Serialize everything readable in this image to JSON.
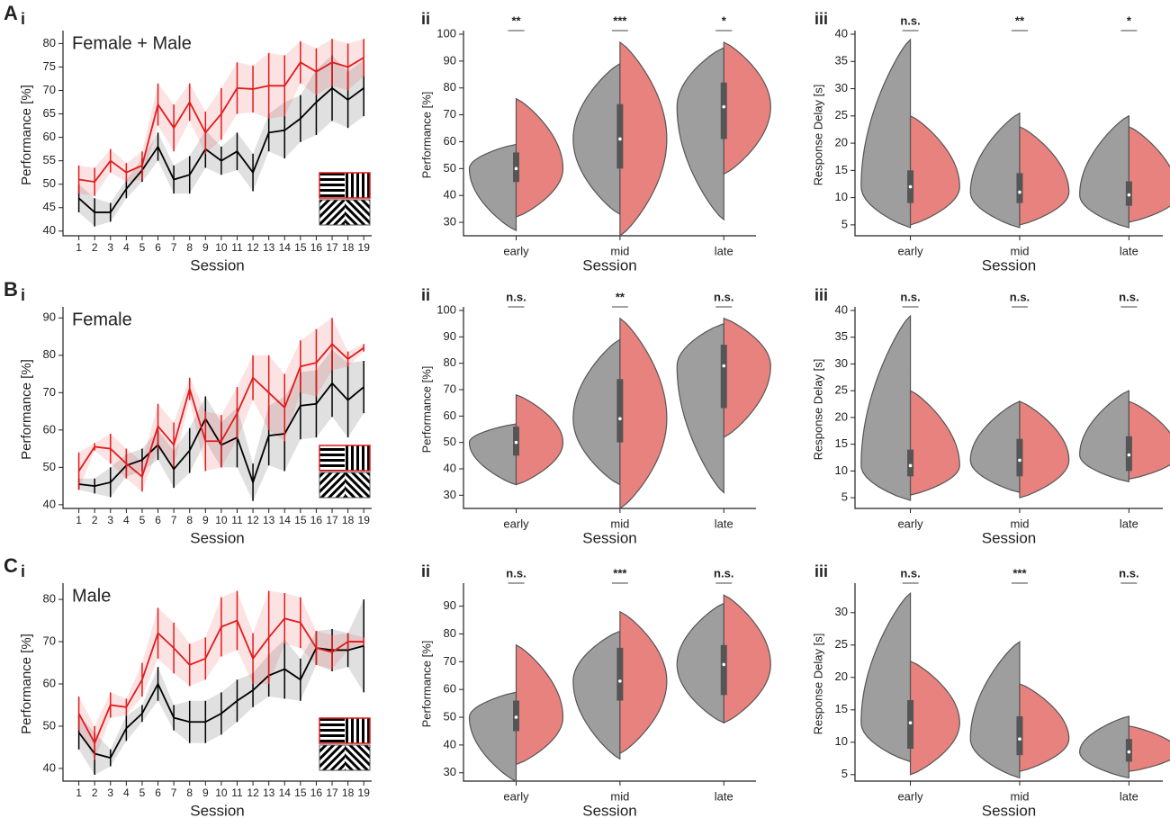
{
  "row_labels": [
    "A",
    "B",
    "C"
  ],
  "chart_data": [
    {
      "type": "line",
      "panel": "i",
      "title": "Female + Male",
      "xlabel": "Session",
      "ylabel": "Performance [%]",
      "x": [
        1,
        2,
        3,
        4,
        5,
        6,
        7,
        8,
        9,
        10,
        11,
        12,
        13,
        14,
        15,
        16,
        17,
        18,
        19
      ],
      "xlim": [
        0,
        19.5
      ],
      "xticks": [
        1,
        2,
        3,
        4,
        5,
        6,
        7,
        8,
        9,
        10,
        11,
        12,
        13,
        14,
        15,
        16,
        17,
        18,
        19
      ],
      "ylim": [
        39,
        82
      ],
      "yticks": [
        40,
        45,
        50,
        55,
        60,
        65,
        70,
        75,
        80
      ],
      "series": [
        {
          "color": "#e31a1c",
          "values": [
            51,
            50.5,
            55,
            52.5,
            54,
            67,
            62,
            67.5,
            61,
            65,
            70.5,
            70.3,
            71,
            71,
            76,
            74,
            76,
            75,
            77
          ],
          "errors": [
            3,
            3,
            2.5,
            2,
            3,
            4.5,
            5,
            4,
            4.5,
            5.5,
            5.5,
            5,
            7,
            6.5,
            4.5,
            5,
            5,
            5,
            4
          ]
        },
        {
          "color": "#000000",
          "values": [
            47,
            44,
            44,
            49,
            53,
            58,
            51,
            52,
            57.5,
            55,
            57,
            52.5,
            61,
            61.5,
            64,
            67.5,
            70.5,
            68,
            70.5
          ],
          "errors": [
            3,
            3,
            2,
            2,
            2.5,
            3,
            3,
            4,
            4,
            3,
            4,
            4,
            4,
            6,
            5,
            7,
            7,
            6,
            6
          ]
        }
      ]
    },
    {
      "type": "violin",
      "panel": "ii",
      "xlabel": "Session",
      "ylabel": "Performance [%]",
      "categories": [
        "early",
        "mid",
        "late"
      ],
      "ylim": [
        25,
        100
      ],
      "yticks": [
        30,
        40,
        50,
        60,
        70,
        80,
        90,
        100
      ],
      "series": [
        {
          "color": "#9e9e9e",
          "min": [
            27,
            33,
            31
          ],
          "max": [
            59,
            89,
            95
          ]
        },
        {
          "color": "#e8827f",
          "min": [
            32,
            25,
            48
          ],
          "max": [
            76,
            97,
            97
          ]
        }
      ],
      "box": {
        "q1": [
          45,
          50,
          61
        ],
        "median": [
          50,
          61,
          73
        ],
        "q3": [
          56,
          74,
          82
        ]
      },
      "annotations": [
        "**",
        "***",
        "*"
      ]
    },
    {
      "type": "violin",
      "panel": "iii",
      "xlabel": "Session",
      "ylabel": "Response Delay [s]",
      "categories": [
        "early",
        "mid",
        "late"
      ],
      "ylim": [
        3,
        40
      ],
      "yticks": [
        5,
        10,
        15,
        20,
        25,
        30,
        35,
        40
      ],
      "series": [
        {
          "color": "#9e9e9e",
          "min": [
            4.5,
            4.5,
            4.5
          ],
          "max": [
            39,
            25.5,
            25
          ]
        },
        {
          "color": "#e8827f",
          "min": [
            5,
            5,
            5.5
          ],
          "max": [
            25,
            23,
            23
          ]
        }
      ],
      "box": {
        "q1": [
          9,
          9,
          8.5
        ],
        "median": [
          12,
          11,
          10.5
        ],
        "q3": [
          15,
          14.5,
          13
        ]
      },
      "annotations": [
        "n.s.",
        "**",
        "*"
      ]
    },
    {
      "type": "line",
      "panel": "i",
      "title": "Female",
      "xlabel": "Session",
      "ylabel": "Performance [%]",
      "x": [
        1,
        2,
        3,
        4,
        5,
        6,
        7,
        8,
        9,
        10,
        11,
        12,
        13,
        14,
        15,
        16,
        17,
        18,
        19
      ],
      "xlim": [
        0,
        19.5
      ],
      "xticks": [
        1,
        2,
        3,
        4,
        5,
        6,
        7,
        8,
        9,
        10,
        11,
        12,
        13,
        14,
        15,
        16,
        17,
        18,
        19
      ],
      "ylim": [
        39,
        92
      ],
      "yticks": [
        40,
        50,
        60,
        70,
        80,
        90
      ],
      "series": [
        {
          "color": "#e31a1c",
          "values": [
            49,
            55.5,
            55,
            51,
            47.5,
            61,
            56,
            71,
            57,
            57,
            64.5,
            74,
            70,
            66,
            77,
            78,
            83,
            79,
            82
          ],
          "errors": [
            5,
            1,
            4,
            4,
            4,
            6,
            6,
            3,
            8,
            7,
            7,
            6,
            10,
            9,
            7,
            9,
            7,
            2,
            1
          ]
        },
        {
          "color": "#000000",
          "values": [
            45.5,
            45,
            46,
            50.5,
            52,
            56,
            49.5,
            54.5,
            63,
            56,
            58,
            46,
            58.5,
            59,
            66.5,
            67,
            72.5,
            68,
            71.5
          ],
          "errors": [
            1.5,
            2,
            4,
            3,
            3,
            4,
            5,
            6,
            6,
            6,
            8,
            5,
            8,
            10,
            9,
            9,
            9,
            10,
            7
          ]
        }
      ]
    },
    {
      "type": "violin",
      "panel": "ii",
      "xlabel": "Session",
      "ylabel": "Performance [%]",
      "categories": [
        "early",
        "mid",
        "late"
      ],
      "ylim": [
        25,
        100
      ],
      "yticks": [
        30,
        40,
        50,
        60,
        70,
        80,
        90,
        100
      ],
      "series": [
        {
          "color": "#9e9e9e",
          "min": [
            34,
            34,
            31
          ],
          "max": [
            57,
            89,
            95
          ]
        },
        {
          "color": "#e8827f",
          "min": [
            34,
            25,
            52
          ],
          "max": [
            68,
            97,
            97
          ]
        }
      ],
      "box": {
        "q1": [
          45,
          50,
          63
        ],
        "median": [
          50,
          59,
          79
        ],
        "q3": [
          56,
          74,
          87
        ]
      },
      "annotations": [
        "n.s.",
        "**",
        "n.s."
      ]
    },
    {
      "type": "violin",
      "panel": "iii",
      "xlabel": "Session",
      "ylabel": "Response Delay [s]",
      "categories": [
        "early",
        "mid",
        "late"
      ],
      "ylim": [
        3,
        40
      ],
      "yticks": [
        5,
        10,
        15,
        20,
        25,
        30,
        35,
        40
      ],
      "series": [
        {
          "color": "#9e9e9e",
          "min": [
            4.5,
            6,
            8
          ],
          "max": [
            39,
            23,
            25
          ]
        },
        {
          "color": "#e8827f",
          "min": [
            5.5,
            5,
            8.5
          ],
          "max": [
            25,
            23,
            23
          ]
        }
      ],
      "box": {
        "q1": [
          9,
          9,
          10
        ],
        "median": [
          11,
          12,
          13
        ],
        "q3": [
          14,
          16,
          16.5
        ]
      },
      "annotations": [
        "n.s.",
        "n.s.",
        "n.s."
      ]
    },
    {
      "type": "line",
      "panel": "i",
      "title": "Male",
      "xlabel": "Session",
      "ylabel": "Performance [%]",
      "x": [
        1,
        2,
        3,
        4,
        5,
        6,
        7,
        8,
        9,
        10,
        11,
        12,
        13,
        14,
        15,
        16,
        17,
        18,
        19
      ],
      "xlim": [
        0,
        19.5
      ],
      "xticks": [
        1,
        2,
        3,
        4,
        5,
        6,
        7,
        8,
        9,
        10,
        11,
        12,
        13,
        14,
        15,
        16,
        17,
        18,
        19
      ],
      "ylim": [
        37,
        83
      ],
      "yticks": [
        40,
        50,
        60,
        70,
        80
      ],
      "series": [
        {
          "color": "#e31a1c",
          "values": [
            53,
            46,
            55,
            54.5,
            61,
            72,
            68.5,
            64.5,
            66,
            73.5,
            75,
            66,
            71,
            75.5,
            74.5,
            68.5,
            67.5,
            70,
            70
          ],
          "errors": [
            4,
            4,
            3,
            2,
            4,
            6,
            6,
            5,
            5,
            7,
            7,
            6,
            11,
            6,
            6,
            4,
            4,
            2,
            1
          ]
        },
        {
          "color": "#000000",
          "values": [
            48.5,
            43.5,
            42.5,
            49.5,
            53,
            60,
            52,
            51,
            51,
            53,
            56,
            58.5,
            62,
            63.5,
            61,
            68.5,
            68,
            68,
            69
          ],
          "errors": [
            4,
            5,
            2,
            3,
            2,
            4,
            3,
            5,
            5,
            5,
            5,
            4,
            5,
            7,
            5,
            4,
            5,
            4,
            11
          ]
        }
      ]
    },
    {
      "type": "violin",
      "panel": "ii",
      "xlabel": "Session",
      "ylabel": "Performance [%]",
      "categories": [
        "early",
        "mid",
        "late"
      ],
      "ylim": [
        27,
        97
      ],
      "yticks": [
        30,
        40,
        50,
        60,
        70,
        80,
        90
      ],
      "series": [
        {
          "color": "#9e9e9e",
          "min": [
            27,
            35,
            48
          ],
          "max": [
            59,
            81,
            91
          ]
        },
        {
          "color": "#e8827f",
          "min": [
            33,
            37,
            48
          ],
          "max": [
            76,
            88,
            94
          ]
        }
      ],
      "box": {
        "q1": [
          45,
          56,
          58
        ],
        "median": [
          50,
          63,
          69
        ],
        "q3": [
          56,
          75,
          76
        ]
      },
      "annotations": [
        "n.s.",
        "***",
        "n.s."
      ]
    },
    {
      "type": "violin",
      "panel": "iii",
      "xlabel": "Session",
      "ylabel": "Response Delay [s]",
      "categories": [
        "early",
        "mid",
        "late"
      ],
      "ylim": [
        4,
        34
      ],
      "yticks": [
        5,
        10,
        15,
        20,
        25,
        30
      ],
      "series": [
        {
          "color": "#9e9e9e",
          "min": [
            7,
            4.5,
            4.5
          ],
          "max": [
            33,
            25.5,
            14
          ]
        },
        {
          "color": "#e8827f",
          "min": [
            5,
            5.5,
            5.5
          ],
          "max": [
            22.5,
            19,
            12.5
          ]
        }
      ],
      "box": {
        "q1": [
          9,
          8,
          7
        ],
        "median": [
          13,
          10.5,
          8.5
        ],
        "q3": [
          16.5,
          14,
          10.5
        ]
      },
      "annotations": [
        "n.s.",
        "***",
        "n.s."
      ]
    }
  ]
}
